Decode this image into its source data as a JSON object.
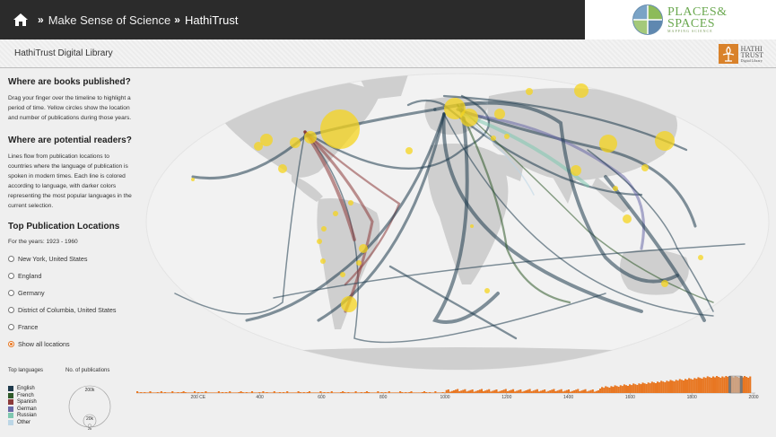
{
  "header": {
    "breadcrumb": [
      "Make Sense of Science",
      "HathiTrust"
    ],
    "separator": "»"
  },
  "logo": {
    "line1": "PLACES&",
    "line2": "SPACES",
    "line3": "MAPPING SCIENCE"
  },
  "subheader": {
    "title": "HathiTrust Digital Library",
    "ht_logo": {
      "line1": "HATHI",
      "line2": "TRUST",
      "line3": "Digital Library"
    }
  },
  "sidebar": {
    "books_heading": "Where are books published?",
    "books_text": "Drag your finger over the timeline to highlight a period of time. Yellow circles show the location and number of publications during those years.",
    "readers_heading": "Where are potential readers?",
    "readers_text": "Lines flow from publication locations to countries where the language of publication is spoken in modern times. Each line is colored according to language, with darker colors representing the most popular languages in the current selection.",
    "top_heading": "Top Publication Locations",
    "years_label": "For the years: 1923 - 1960",
    "locations": [
      {
        "label": "New York, United States",
        "selected": false
      },
      {
        "label": "England",
        "selected": false
      },
      {
        "label": "Germany",
        "selected": false
      },
      {
        "label": "District of Columbia, United States",
        "selected": false
      },
      {
        "label": "France",
        "selected": false
      },
      {
        "label": "Show all locations",
        "selected": true
      }
    ]
  },
  "legend": {
    "languages_title": "Top languages",
    "publications_title": "No. of publications",
    "languages": [
      {
        "name": "English",
        "color": "#1e3a4c"
      },
      {
        "name": "French",
        "color": "#2f5a2a"
      },
      {
        "name": "Spanish",
        "color": "#8c3a3a"
      },
      {
        "name": "German",
        "color": "#6a6aa8"
      },
      {
        "name": "Russian",
        "color": "#7fc8b0"
      },
      {
        "name": "Other",
        "color": "#bcd6e6"
      }
    ],
    "size_labels": [
      "200k",
      "20k",
      "2k"
    ]
  },
  "timeline": {
    "tick_labels": [
      "200 CE",
      "400",
      "600",
      "800",
      "1000",
      "1200",
      "1400",
      "1600",
      "1800",
      "2000"
    ],
    "selection": {
      "start": 1923,
      "end": 1960
    },
    "accent_color": "#e87722"
  },
  "colors": {
    "publication_circle": "#f5d41e",
    "flow_dark": "#1e3a4c",
    "land": "#cfcfcf"
  }
}
